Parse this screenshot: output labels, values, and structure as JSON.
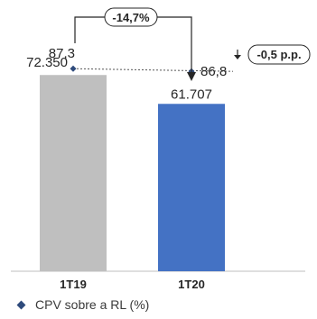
{
  "chart_data": {
    "type": "bar",
    "categories": [
      "1T19",
      "1T20"
    ],
    "values": [
      72350,
      61707
    ],
    "value_labels": [
      "72.350",
      "61.707"
    ],
    "bar_colors": [
      "#bfbfbf",
      "#4472c4"
    ],
    "ylim": [
      0,
      100000
    ],
    "ratio_series": {
      "name": "CPV sobre a RL (%)",
      "values": [
        87.3,
        86.8
      ],
      "value_labels": [
        "87,3",
        "86,8"
      ],
      "marker_color": "#2f4b7c"
    },
    "annotations": {
      "bar_change": "-14,7%",
      "ratio_change": "-0,5 p.p."
    },
    "legend": {
      "position": "bottom-left"
    }
  }
}
